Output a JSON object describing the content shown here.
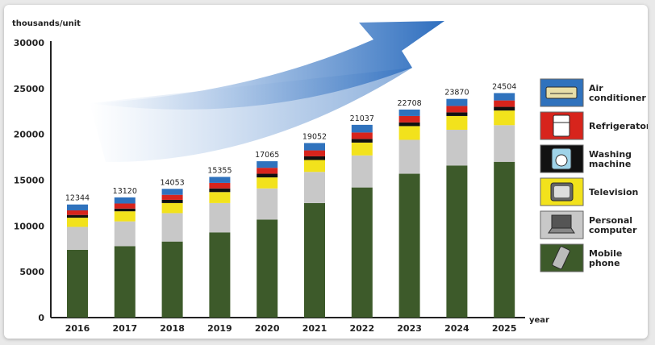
{
  "chart_data": {
    "type": "bar",
    "stacked": true,
    "ylabel": "thousands/unit",
    "xlabel": "year",
    "ylim": [
      0,
      30000
    ],
    "yticks": [
      0,
      5000,
      10000,
      15000,
      20000,
      25000,
      30000
    ],
    "categories": [
      "2016",
      "2017",
      "2018",
      "2019",
      "2020",
      "2021",
      "2022",
      "2023",
      "2024",
      "2025"
    ],
    "totals": [
      12344,
      13120,
      14053,
      15355,
      17065,
      19052,
      21037,
      22708,
      23870,
      24504
    ],
    "series": [
      {
        "name": "Mobile phone",
        "color": "#3d5a2a",
        "values": [
          7400,
          7800,
          8300,
          9300,
          10700,
          12500,
          14200,
          15700,
          16600,
          17000
        ]
      },
      {
        "name": "Personal computer",
        "color": "#c8c8c8",
        "values": [
          2500,
          2700,
          3100,
          3200,
          3400,
          3400,
          3500,
          3700,
          3900,
          4000
        ]
      },
      {
        "name": "Television",
        "color": "#f2e21c",
        "values": [
          1000,
          1100,
          1100,
          1200,
          1200,
          1300,
          1400,
          1500,
          1500,
          1600
        ]
      },
      {
        "name": "Washing machine",
        "color": "#111111",
        "values": [
          300,
          300,
          350,
          400,
          400,
          400,
          400,
          400,
          400,
          400
        ]
      },
      {
        "name": "Refrigerator",
        "color": "#d7241c",
        "values": [
          500,
          550,
          550,
          600,
          650,
          650,
          700,
          700,
          700,
          700
        ]
      },
      {
        "name": "Air conditioner",
        "color": "#2f72bd",
        "values": [
          644,
          670,
          653,
          655,
          715,
          802,
          837,
          708,
          770,
          804
        ]
      }
    ],
    "legend": [
      {
        "lines": [
          "Air",
          "conditioner"
        ],
        "color": "#2f72bd",
        "icon": "air-conditioner-icon"
      },
      {
        "lines": [
          "Refrigerator"
        ],
        "color": "#d7241c",
        "icon": "refrigerator-icon"
      },
      {
        "lines": [
          "Washing",
          "machine"
        ],
        "color": "#111111",
        "icon": "washing-machine-icon"
      },
      {
        "lines": [
          "Television"
        ],
        "color": "#f2e21c",
        "icon": "television-icon"
      },
      {
        "lines": [
          "Personal",
          "computer"
        ],
        "color": "#c8c8c8",
        "icon": "personal-computer-icon"
      },
      {
        "lines": [
          "Mobile",
          "phone"
        ],
        "color": "#3d5a2a",
        "icon": "mobile-phone-icon"
      }
    ],
    "legend_position": "right",
    "grid": false
  }
}
